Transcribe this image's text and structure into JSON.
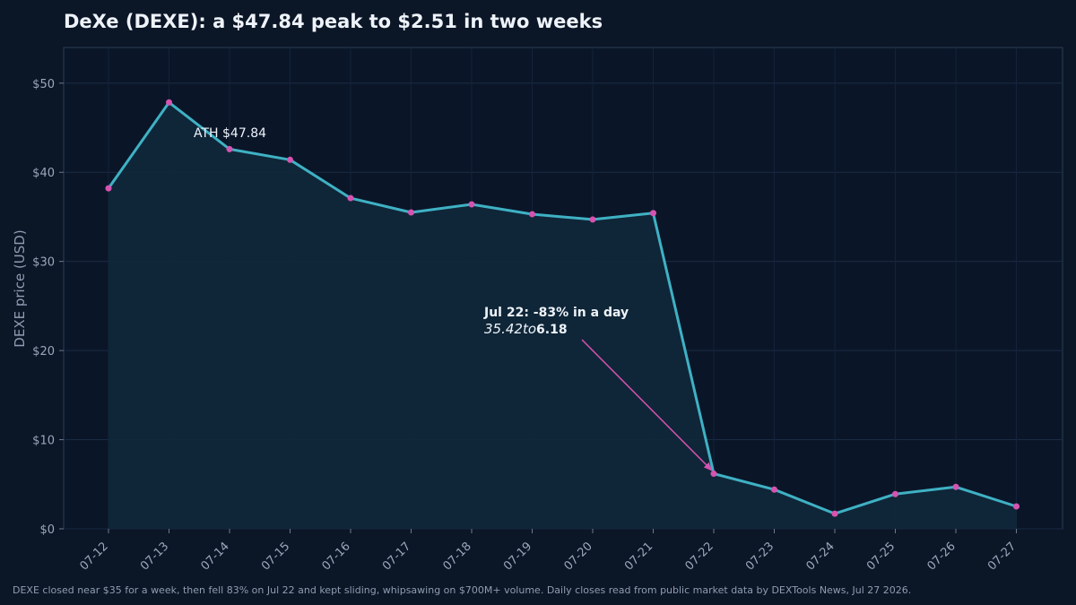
{
  "chart_data": {
    "type": "line",
    "title": "DeXe (DEXE): a $47.84 peak to $2.51 in two weeks",
    "xlabel": "",
    "ylabel": "DEXE price (USD)",
    "ylim": [
      0,
      54
    ],
    "yticks": [
      0,
      10,
      20,
      30,
      40,
      50
    ],
    "ytick_labels": [
      "$0",
      "$10",
      "$20",
      "$30",
      "$40",
      "$50"
    ],
    "categories": [
      "07-12",
      "07-13",
      "07-14",
      "07-15",
      "07-16",
      "07-17",
      "07-18",
      "07-19",
      "07-20",
      "07-21",
      "07-22",
      "07-23",
      "07-24",
      "07-25",
      "07-26",
      "07-27"
    ],
    "values": [
      38.2,
      47.84,
      42.6,
      41.4,
      37.1,
      35.5,
      36.4,
      35.3,
      34.7,
      35.42,
      6.18,
      4.4,
      1.7,
      3.9,
      4.7,
      2.51
    ],
    "grid": true,
    "line_color": "#3fb1c4",
    "marker_color": "#d653b0",
    "area_color": "#10283a",
    "annotations": {
      "ath": {
        "text": "ATH $47.84"
      },
      "crash": {
        "line1": "Jul 22: -83% in a day",
        "line2_italic": "35.42to",
        "line2_bold": "6.18"
      }
    }
  },
  "footer": "DEXE closed near $35 for a week, then fell 83% on Jul 22 and kept sliding, whipsawing on $700M+ volume. Daily closes read from public market data by DEXTools News, Jul 27 2026."
}
